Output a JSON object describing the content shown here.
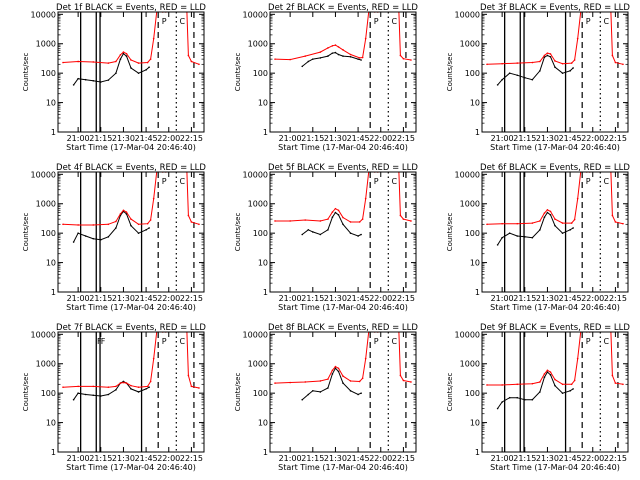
{
  "figure": {
    "xlabel": "Start Time (17-Mar-04 20:46:40)",
    "ylabel": "Counts/sec",
    "x_tick_labels": [
      "21:00",
      "21:15",
      "21:30",
      "21:45",
      "22:00",
      "22:15"
    ],
    "y_tick_labels": [
      "1",
      "10",
      "100",
      "1000",
      "10000"
    ],
    "colors": {
      "events": "#000000",
      "lld": "#ff0000",
      "background": "#ffffff"
    }
  },
  "chart_data": [
    {
      "type": "line",
      "title": "Det 1f  BLACK = Events, RED = LLD",
      "x_ticks": [
        "21:00",
        "21:15",
        "21:30",
        "21:45",
        "22:00",
        "22:15"
      ],
      "y_scale": "log",
      "ylim": [
        1,
        12000
      ],
      "xlim_minutes": [
        "20:46:40",
        "22:23:20"
      ],
      "series": [
        {
          "name": "BLACK = Events",
          "x": [
            "20:57",
            "21:00",
            "21:05",
            "21:10",
            "21:15",
            "21:20",
            "21:25",
            "21:28",
            "21:30",
            "21:32",
            "21:35",
            "21:40",
            "21:45",
            "21:47"
          ],
          "values": [
            40,
            65,
            60,
            55,
            50,
            58,
            100,
            300,
            460,
            380,
            150,
            100,
            130,
            160
          ]
        },
        {
          "name": "RED = LLD",
          "x": [
            "20:50",
            "21:00",
            "21:10",
            "21:20",
            "21:25",
            "21:28",
            "21:30",
            "21:32",
            "21:35",
            "21:40",
            "21:46",
            "21:48",
            "21:50",
            "21:52",
            "21:56",
            "21:58",
            "22:12",
            "22:13",
            "22:15",
            "22:20"
          ],
          "values": [
            230,
            250,
            240,
            220,
            250,
            420,
            520,
            460,
            280,
            220,
            230,
            300,
            1500,
            12000,
            12000,
            12000,
            12000,
            400,
            250,
            200
          ]
        }
      ],
      "solid_markers": [
        "21:01:40",
        "21:12:00",
        "21:14:30",
        "21:42:00"
      ],
      "dashed_markers": [
        "21:53",
        "22:16:40"
      ],
      "dotted_markers": [
        "22:05"
      ],
      "annotations": [
        "P",
        "C"
      ]
    },
    {
      "type": "line",
      "title": "Det 2f  BLACK = Events, RED = LLD",
      "x_ticks": [
        "21:00",
        "21:15",
        "21:30",
        "21:45",
        "22:00",
        "22:15"
      ],
      "y_scale": "log",
      "ylim": [
        1,
        12000
      ],
      "xlim_minutes": [
        "20:46:40",
        "22:23:20"
      ],
      "series": [
        {
          "name": "BLACK = Events",
          "x": [
            "21:08",
            "21:12",
            "21:15",
            "21:20",
            "21:25",
            "21:28",
            "21:30",
            "21:32",
            "21:35",
            "21:40",
            "21:45",
            "21:47"
          ],
          "values": [
            170,
            250,
            300,
            330,
            380,
            480,
            500,
            430,
            380,
            360,
            300,
            280
          ]
        },
        {
          "name": "RED = LLD",
          "x": [
            "20:50",
            "21:00",
            "21:10",
            "21:20",
            "21:25",
            "21:28",
            "21:30",
            "21:32",
            "21:35",
            "21:40",
            "21:46",
            "21:48",
            "21:50",
            "21:52",
            "21:56",
            "21:58",
            "22:12",
            "22:13",
            "22:15",
            "22:20"
          ],
          "values": [
            300,
            290,
            380,
            520,
            720,
            850,
            900,
            780,
            620,
            430,
            330,
            340,
            1500,
            12000,
            12000,
            12000,
            12000,
            400,
            310,
            280
          ]
        }
      ],
      "solid_markers": [],
      "dashed_markers": [
        "21:53",
        "22:16:40"
      ],
      "dotted_markers": [
        "22:05"
      ],
      "annotations": [
        "P",
        "C"
      ]
    },
    {
      "type": "line",
      "title": "Det 3f  BLACK = Events, RED = LLD",
      "x_ticks": [
        "21:00",
        "21:15",
        "21:30",
        "21:45",
        "22:00",
        "22:15"
      ],
      "y_scale": "log",
      "ylim": [
        1,
        12000
      ],
      "xlim_minutes": [
        "20:46:40",
        "22:23:20"
      ],
      "series": [
        {
          "name": "BLACK = Events",
          "x": [
            "20:57",
            "21:00",
            "21:05",
            "21:10",
            "21:15",
            "21:20",
            "21:25",
            "21:28",
            "21:30",
            "21:32",
            "21:35",
            "21:40",
            "21:45",
            "21:47"
          ],
          "values": [
            40,
            60,
            100,
            85,
            70,
            60,
            120,
            350,
            400,
            360,
            160,
            100,
            120,
            150
          ]
        },
        {
          "name": "RED = LLD",
          "x": [
            "20:50",
            "21:00",
            "21:10",
            "21:20",
            "21:25",
            "21:28",
            "21:30",
            "21:32",
            "21:35",
            "21:40",
            "21:46",
            "21:48",
            "21:50",
            "21:52",
            "21:56",
            "21:58",
            "22:12",
            "22:13",
            "22:15",
            "22:20"
          ],
          "values": [
            200,
            210,
            220,
            230,
            250,
            400,
            480,
            450,
            260,
            210,
            220,
            280,
            1500,
            12000,
            12000,
            12000,
            12000,
            400,
            230,
            200
          ]
        }
      ],
      "solid_markers": [
        "21:01:40",
        "21:12:00",
        "21:14:30",
        "21:42:00"
      ],
      "dashed_markers": [
        "21:53",
        "22:16:40"
      ],
      "dotted_markers": [
        "22:05"
      ],
      "annotations": [
        "P",
        "C"
      ]
    },
    {
      "type": "line",
      "title": "Det 4f  BLACK = Events, RED = LLD",
      "x_ticks": [
        "21:00",
        "21:15",
        "21:30",
        "21:45",
        "22:00",
        "22:15"
      ],
      "y_scale": "log",
      "ylim": [
        1,
        12000
      ],
      "xlim_minutes": [
        "20:46:40",
        "22:23:20"
      ],
      "series": [
        {
          "name": "BLACK = Events",
          "x": [
            "20:57",
            "21:00",
            "21:05",
            "21:10",
            "21:15",
            "21:20",
            "21:25",
            "21:28",
            "21:30",
            "21:32",
            "21:35",
            "21:40",
            "21:45",
            "21:47"
          ],
          "values": [
            50,
            100,
            80,
            65,
            60,
            75,
            150,
            400,
            550,
            450,
            180,
            100,
            130,
            150
          ]
        },
        {
          "name": "RED = LLD",
          "x": [
            "20:50",
            "21:00",
            "21:10",
            "21:20",
            "21:25",
            "21:28",
            "21:30",
            "21:32",
            "21:35",
            "21:40",
            "21:46",
            "21:48",
            "21:50",
            "21:52",
            "21:56",
            "21:58",
            "22:12",
            "22:13",
            "22:15",
            "22:20"
          ],
          "values": [
            200,
            190,
            190,
            200,
            250,
            450,
            600,
            520,
            300,
            200,
            210,
            280,
            1500,
            12000,
            12000,
            12000,
            12000,
            400,
            240,
            200
          ]
        }
      ],
      "solid_markers": [
        "21:01:40",
        "21:12:00",
        "21:14:30",
        "21:42:00"
      ],
      "dashed_markers": [
        "21:53",
        "22:16:40"
      ],
      "dotted_markers": [
        "22:05"
      ],
      "annotations": [
        "P",
        "C"
      ]
    },
    {
      "type": "line",
      "title": "Det 5f  BLACK = Events, RED = LLD",
      "x_ticks": [
        "21:00",
        "21:15",
        "21:30",
        "21:45",
        "22:00",
        "22:15"
      ],
      "y_scale": "log",
      "ylim": [
        1,
        12000
      ],
      "xlim_minutes": [
        "20:46:40",
        "22:23:20"
      ],
      "series": [
        {
          "name": "BLACK = Events",
          "x": [
            "21:08",
            "21:12",
            "21:15",
            "21:20",
            "21:25",
            "21:28",
            "21:30",
            "21:32",
            "21:35",
            "21:40",
            "21:45",
            "21:47"
          ],
          "values": [
            90,
            130,
            110,
            90,
            130,
            350,
            500,
            420,
            200,
            100,
            80,
            90
          ]
        },
        {
          "name": "RED = LLD",
          "x": [
            "20:50",
            "21:00",
            "21:10",
            "21:20",
            "21:25",
            "21:28",
            "21:30",
            "21:32",
            "21:35",
            "21:40",
            "21:46",
            "21:48",
            "21:50",
            "21:52",
            "21:56",
            "21:58",
            "22:12",
            "22:13",
            "22:15",
            "22:20"
          ],
          "values": [
            260,
            260,
            280,
            260,
            300,
            520,
            680,
            600,
            340,
            240,
            240,
            300,
            1500,
            12000,
            12000,
            12000,
            12000,
            400,
            300,
            260
          ]
        }
      ],
      "solid_markers": [],
      "dashed_markers": [
        "21:53",
        "22:16:40"
      ],
      "dotted_markers": [
        "22:05"
      ],
      "annotations": [
        "P",
        "C"
      ]
    },
    {
      "type": "line",
      "title": "Det 6f  BLACK = Events, RED = LLD",
      "x_ticks": [
        "21:00",
        "21:15",
        "21:30",
        "21:45",
        "22:00",
        "22:15"
      ],
      "y_scale": "log",
      "ylim": [
        1,
        12000
      ],
      "xlim_minutes": [
        "20:46:40",
        "22:23:20"
      ],
      "series": [
        {
          "name": "BLACK = Events",
          "x": [
            "20:57",
            "21:00",
            "21:05",
            "21:10",
            "21:15",
            "21:20",
            "21:25",
            "21:28",
            "21:30",
            "21:32",
            "21:35",
            "21:40",
            "21:45",
            "21:47"
          ],
          "values": [
            40,
            70,
            100,
            80,
            75,
            70,
            130,
            350,
            500,
            420,
            180,
            100,
            130,
            150
          ]
        },
        {
          "name": "RED = LLD",
          "x": [
            "20:50",
            "21:00",
            "21:10",
            "21:20",
            "21:25",
            "21:28",
            "21:30",
            "21:32",
            "21:35",
            "21:40",
            "21:46",
            "21:48",
            "21:50",
            "21:52",
            "21:56",
            "21:58",
            "22:12",
            "22:13",
            "22:15",
            "22:20"
          ],
          "values": [
            200,
            210,
            210,
            220,
            260,
            480,
            620,
            550,
            300,
            220,
            220,
            290,
            1500,
            12000,
            12000,
            12000,
            12000,
            400,
            240,
            210
          ]
        }
      ],
      "solid_markers": [
        "21:01:40",
        "21:12:00",
        "21:14:30",
        "21:42:00"
      ],
      "dashed_markers": [
        "21:53",
        "22:16:40"
      ],
      "dotted_markers": [
        "22:05"
      ],
      "annotations": [
        "P",
        "C"
      ]
    },
    {
      "type": "line",
      "title": "Det 7f  BLACK = Events, RED = LLD",
      "x_ticks": [
        "21:00",
        "21:15",
        "21:30",
        "21:45",
        "22:00",
        "22:15"
      ],
      "y_scale": "log",
      "ylim": [
        1,
        12000
      ],
      "xlim_minutes": [
        "20:46:40",
        "22:23:20"
      ],
      "series": [
        {
          "name": "BLACK = Events",
          "x": [
            "20:57",
            "21:00",
            "21:05",
            "21:10",
            "21:15",
            "21:20",
            "21:25",
            "21:28",
            "21:30",
            "21:32",
            "21:35",
            "21:40",
            "21:45",
            "21:47"
          ],
          "values": [
            60,
            100,
            90,
            85,
            80,
            90,
            130,
            220,
            250,
            220,
            140,
            110,
            140,
            160
          ]
        },
        {
          "name": "RED = LLD",
          "x": [
            "20:50",
            "21:00",
            "21:10",
            "21:20",
            "21:25",
            "21:28",
            "21:30",
            "21:32",
            "21:35",
            "21:40",
            "21:46",
            "21:48",
            "21:50",
            "21:52",
            "21:56",
            "21:58",
            "22:12",
            "22:13",
            "22:15",
            "22:20"
          ],
          "values": [
            160,
            170,
            170,
            160,
            170,
            220,
            230,
            220,
            180,
            160,
            170,
            250,
            1500,
            12000,
            12000,
            12000,
            12000,
            400,
            170,
            150
          ]
        }
      ],
      "solid_markers": [
        "21:01:40",
        "21:12:00",
        "21:14:30",
        "21:42:00"
      ],
      "dashed_markers": [
        "21:53",
        "22:16:40"
      ],
      "dotted_markers": [
        "22:05"
      ],
      "annotations": [
        "P",
        "C",
        "F",
        "F"
      ]
    },
    {
      "type": "line",
      "title": "Det 8f  BLACK = Events, RED = LLD",
      "x_ticks": [
        "21:00",
        "21:15",
        "21:30",
        "21:45",
        "22:00",
        "22:15"
      ],
      "y_scale": "log",
      "ylim": [
        1,
        12000
      ],
      "xlim_minutes": [
        "20:46:40",
        "22:23:20"
      ],
      "series": [
        {
          "name": "BLACK = Events",
          "x": [
            "21:08",
            "21:12",
            "21:15",
            "21:20",
            "21:25",
            "21:28",
            "21:30",
            "21:32",
            "21:35",
            "21:40",
            "21:45",
            "21:47"
          ],
          "values": [
            60,
            90,
            120,
            110,
            150,
            450,
            700,
            550,
            220,
            120,
            90,
            100
          ]
        },
        {
          "name": "RED = LLD",
          "x": [
            "20:50",
            "21:00",
            "21:10",
            "21:20",
            "21:25",
            "21:28",
            "21:30",
            "21:32",
            "21:35",
            "21:40",
            "21:46",
            "21:48",
            "21:50",
            "21:52",
            "21:56",
            "21:58",
            "22:12",
            "22:13",
            "22:15",
            "22:20"
          ],
          "values": [
            220,
            230,
            240,
            260,
            300,
            600,
            800,
            700,
            380,
            260,
            250,
            320,
            1500,
            12000,
            12000,
            12000,
            12000,
            400,
            270,
            240
          ]
        }
      ],
      "solid_markers": [],
      "dashed_markers": [
        "21:53",
        "22:16:40"
      ],
      "dotted_markers": [
        "22:05"
      ],
      "annotations": [
        "P",
        "C"
      ]
    },
    {
      "type": "line",
      "title": "Det 9f  BLACK = Events, RED = LLD",
      "x_ticks": [
        "21:00",
        "21:15",
        "21:30",
        "21:45",
        "22:00",
        "22:15"
      ],
      "y_scale": "log",
      "ylim": [
        1,
        12000
      ],
      "xlim_minutes": [
        "20:46:40",
        "22:23:20"
      ],
      "series": [
        {
          "name": "BLACK = Events",
          "x": [
            "20:57",
            "21:00",
            "21:05",
            "21:10",
            "21:15",
            "21:20",
            "21:25",
            "21:28",
            "21:30",
            "21:32",
            "21:35",
            "21:40",
            "21:45",
            "21:47"
          ],
          "values": [
            30,
            50,
            70,
            70,
            60,
            60,
            110,
            350,
            520,
            420,
            180,
            100,
            120,
            140
          ]
        },
        {
          "name": "RED = LLD",
          "x": [
            "20:50",
            "21:00",
            "21:10",
            "21:20",
            "21:25",
            "21:28",
            "21:30",
            "21:32",
            "21:35",
            "21:40",
            "21:46",
            "21:48",
            "21:50",
            "21:52",
            "21:56",
            "21:58",
            "22:12",
            "22:13",
            "22:15",
            "22:20"
          ],
          "values": [
            190,
            190,
            200,
            210,
            240,
            450,
            600,
            520,
            290,
            200,
            200,
            270,
            1500,
            12000,
            12000,
            12000,
            12000,
            400,
            220,
            200
          ]
        }
      ],
      "solid_markers": [
        "21:01:40",
        "21:12:00",
        "21:14:30",
        "21:42:00"
      ],
      "dashed_markers": [
        "21:53",
        "22:16:40"
      ],
      "dotted_markers": [
        "22:05"
      ],
      "annotations": [
        "P",
        "C"
      ]
    }
  ]
}
